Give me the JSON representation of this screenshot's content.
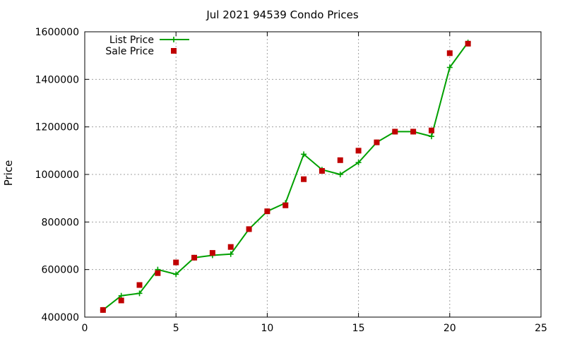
{
  "chart_data": {
    "type": "line",
    "title": "Jul 2021 94539 Condo Prices",
    "xlabel": "",
    "ylabel": "Price",
    "xlim": [
      0,
      25
    ],
    "ylim": [
      400000,
      1600000
    ],
    "xticks": [
      0,
      5,
      10,
      15,
      20,
      25
    ],
    "yticks": [
      400000,
      600000,
      800000,
      1000000,
      1200000,
      1400000,
      1600000
    ],
    "grid": true,
    "legend_position": "top-left",
    "series": [
      {
        "name": "List Price",
        "style": "line-points",
        "color": "#00a000",
        "x": [
          1,
          2,
          3,
          4,
          5,
          6,
          7,
          8,
          9,
          10,
          11,
          12,
          13,
          14,
          15,
          16,
          17,
          18,
          19,
          20,
          21
        ],
        "y": [
          430000,
          490000,
          500000,
          600000,
          580000,
          650000,
          660000,
          665000,
          770000,
          845000,
          880000,
          1085000,
          1020000,
          1000000,
          1050000,
          1135000,
          1180000,
          1180000,
          1160000,
          1450000,
          1555000
        ]
      },
      {
        "name": "Sale Price",
        "style": "points",
        "color": "#c00000",
        "x": [
          1,
          2,
          3,
          4,
          5,
          6,
          7,
          8,
          9,
          10,
          11,
          12,
          13,
          14,
          15,
          16,
          17,
          18,
          19,
          20,
          21
        ],
        "y": [
          430000,
          470000,
          535000,
          585000,
          630000,
          650000,
          670000,
          695000,
          770000,
          845000,
          870000,
          980000,
          1015000,
          1060000,
          1100000,
          1135000,
          1180000,
          1180000,
          1185000,
          1510000,
          1550000
        ]
      }
    ]
  }
}
